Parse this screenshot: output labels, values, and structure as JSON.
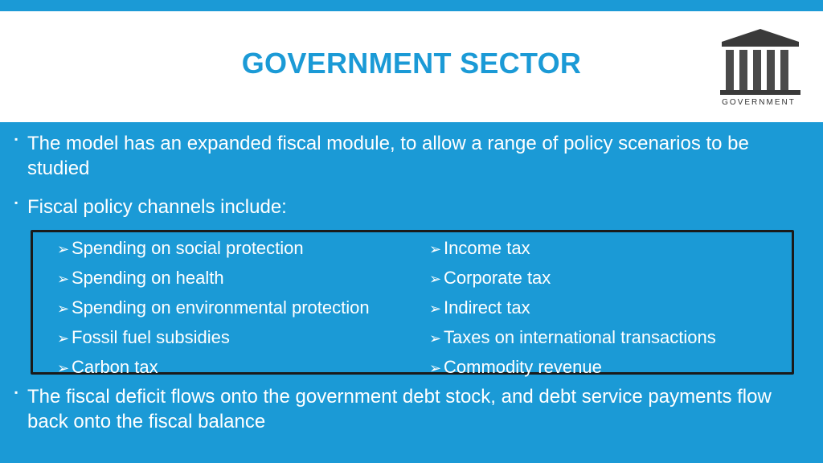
{
  "slide": {
    "title": "GOVERNMENT SECTOR",
    "logo_label": "GOVERNMENT",
    "bullets": [
      "The model has an expanded fiscal module, to allow a range of policy scenarios to be studied",
      "Fiscal policy channels include:",
      "The fiscal deficit flows onto the government debt stock, and debt service payments flow back onto the fiscal balance"
    ],
    "bullet_marker": "▪",
    "channels_left": [
      "Spending on social protection",
      "Spending on health",
      "Spending on environmental protection",
      "Fossil fuel subsidies",
      "Carbon tax"
    ],
    "channels_right": [
      "Income tax",
      "Corporate tax",
      "Indirect tax",
      "Taxes on international transactions",
      "Commodity revenue"
    ],
    "list_marker": "➢",
    "colors": {
      "background": "#1b9ad6",
      "header": "#ffffff",
      "title": "#1b9ad6",
      "text": "#ffffff",
      "box_border": "#1a1a1a"
    },
    "icons": {
      "logo": "government-building-icon"
    }
  }
}
